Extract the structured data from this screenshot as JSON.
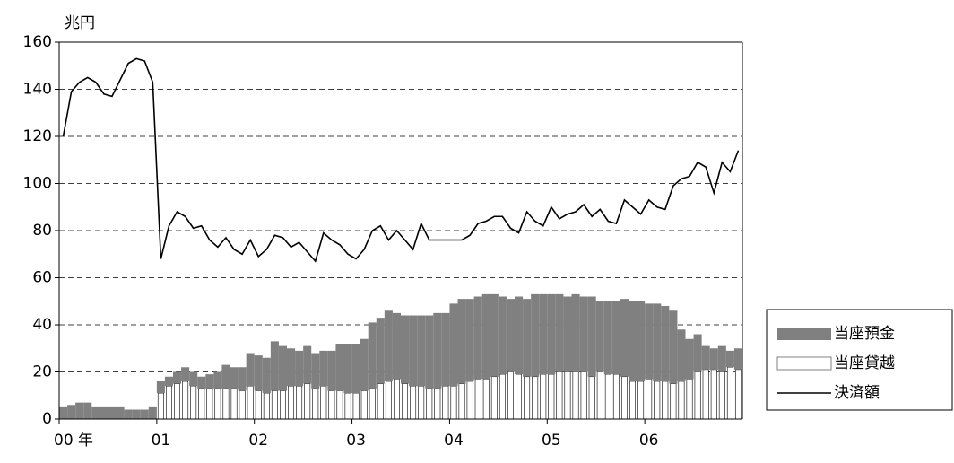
{
  "chart_data": {
    "type": "bar",
    "stacked": true,
    "y_label": "兆円",
    "categories": [
      "00 年",
      null,
      null,
      null,
      null,
      null,
      null,
      null,
      null,
      null,
      null,
      null,
      "01",
      null,
      null,
      null,
      null,
      null,
      null,
      null,
      null,
      null,
      null,
      null,
      "02",
      null,
      null,
      null,
      null,
      null,
      null,
      null,
      null,
      null,
      null,
      null,
      "03",
      null,
      null,
      null,
      null,
      null,
      null,
      null,
      null,
      null,
      null,
      null,
      "04",
      null,
      null,
      null,
      null,
      null,
      null,
      null,
      null,
      null,
      null,
      null,
      "05",
      null,
      null,
      null,
      null,
      null,
      null,
      null,
      null,
      null,
      null,
      null,
      "06",
      null,
      null,
      null,
      null,
      null,
      null,
      null,
      null,
      null,
      null,
      null
    ],
    "ylim": [
      0,
      160
    ],
    "yticks": [
      0,
      20,
      40,
      60,
      80,
      100,
      120,
      140,
      160
    ],
    "grid": true,
    "legend": "right",
    "series": [
      {
        "name": "当座預金",
        "type": "bar",
        "color": "#808080",
        "values": [
          5,
          6,
          7,
          7,
          5,
          5,
          5,
          5,
          4,
          4,
          4,
          5,
          5,
          4,
          5,
          6,
          6,
          5,
          6,
          7,
          10,
          9,
          10,
          14,
          15,
          15,
          21,
          19,
          16,
          15,
          16,
          15,
          15,
          17,
          20,
          21,
          21,
          22,
          28,
          28,
          30,
          28,
          29,
          30,
          30,
          31,
          32,
          31,
          35,
          36,
          35,
          35,
          36,
          35,
          33,
          31,
          33,
          33,
          35,
          34,
          34,
          33,
          32,
          33,
          32,
          34,
          30,
          31,
          31,
          33,
          34,
          34,
          32,
          33,
          32,
          31,
          22,
          17,
          16,
          10,
          9,
          11,
          7,
          9
        ]
      },
      {
        "name": "当座貸越",
        "type": "bar",
        "color": "#ffffff",
        "values": [
          0,
          0,
          0,
          0,
          0,
          0,
          0,
          0,
          0,
          0,
          0,
          0,
          11,
          14,
          15,
          16,
          14,
          13,
          13,
          13,
          13,
          13,
          12,
          14,
          12,
          11,
          12,
          12,
          14,
          14,
          15,
          13,
          14,
          12,
          12,
          11,
          11,
          12,
          13,
          15,
          16,
          17,
          15,
          14,
          14,
          13,
          13,
          14,
          14,
          15,
          16,
          17,
          17,
          18,
          19,
          20,
          19,
          18,
          18,
          19,
          19,
          20,
          20,
          20,
          20,
          18,
          20,
          19,
          19,
          18,
          16,
          16,
          17,
          16,
          16,
          15,
          16,
          17,
          20,
          21,
          21,
          20,
          22,
          21
        ]
      },
      {
        "name": "決済額",
        "type": "line",
        "color": "#000000",
        "values": [
          120,
          139,
          143,
          145,
          143,
          138,
          137,
          144,
          151,
          153,
          152,
          143,
          68,
          82,
          88,
          86,
          81,
          82,
          76,
          73,
          77,
          72,
          70,
          76,
          69,
          72,
          78,
          77,
          73,
          75,
          71,
          67,
          79,
          76,
          74,
          70,
          68,
          72,
          80,
          82,
          76,
          80,
          76,
          72,
          83,
          76,
          76,
          76,
          76,
          76,
          78,
          83,
          84,
          86,
          86,
          81,
          79,
          88,
          84,
          82,
          90,
          85,
          87,
          88,
          91,
          86,
          89,
          84,
          83,
          93,
          90,
          87,
          93,
          90,
          89,
          99,
          102,
          103,
          109,
          107,
          96,
          109,
          105,
          114
        ]
      }
    ]
  }
}
